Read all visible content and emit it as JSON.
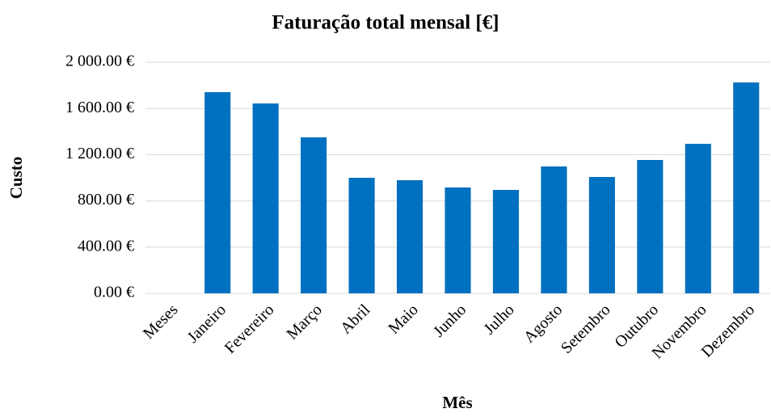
{
  "chart_data": {
    "type": "bar",
    "title": "Faturação total mensal [€]",
    "x_label": "Mês",
    "y_label": "Custo",
    "categories": [
      "Meses",
      "Janeiro",
      "Fevereiro",
      "Março",
      "Abril",
      "Maio",
      "Junho",
      "Julho",
      "Agosto",
      "Setembro",
      "Outubro",
      "Novembro",
      "Dezembro"
    ],
    "values": [
      null,
      1741,
      1643,
      1350,
      1000,
      979,
      916,
      895,
      1098,
      1007,
      1154,
      1294,
      1825
    ],
    "color": "#0070c0",
    "ylim": [
      0,
      2000
    ],
    "yticks": [
      {
        "value": 0,
        "label": "0.00 €"
      },
      {
        "value": 400,
        "label": "400.00 €"
      },
      {
        "value": 800,
        "label": "800.00 €"
      },
      {
        "value": 1200,
        "label": "1 200.00 €"
      },
      {
        "value": 1600,
        "label": "1 600.00 €"
      },
      {
        "value": 2000,
        "label": "2 000.00 €"
      }
    ],
    "grid": true
  }
}
